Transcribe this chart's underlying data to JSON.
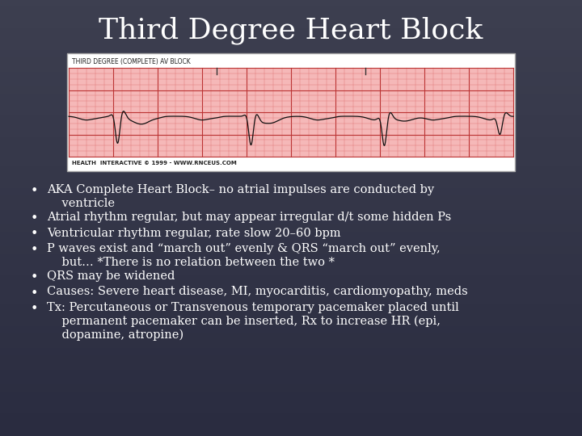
{
  "title": "Third Degree Heart Block",
  "title_fontsize": 26,
  "title_color": "#ffffff",
  "bg_color": "#3d3f50",
  "bullet_points": [
    "AKA Complete Heart Block– no atrial impulses are conducted by\n    ventricle",
    "Atrial rhythm regular, but may appear irregular d/t some hidden Ps",
    "Ventricular rhythm regular, rate slow 20–60 bpm",
    "P waves exist and “march out” evenly & QRS “march out” evenly,\n    but… *There is no relation between the two *",
    "QRS may be widened",
    "Causes: Severe heart disease, MI, myocarditis, cardiomyopathy, meds",
    "Tx: Percutaneous or Transvenous temporary pacemaker placed until\n    permanent pacemaker can be inserted, Rx to increase HR (epi,\n    dopamine, atropine)"
  ],
  "bullet_fontsize": 10.5,
  "bullet_color": "#ffffff",
  "ecg_image_label": "THIRD DEGREE (COMPLETE) AV BLOCK",
  "ecg_footer": "HEALTH  INTERACTIVE © 1999 - WWW.RNCEUS.COM",
  "ecg_bg": "#f5b8b8",
  "ecg_grid_minor": "#dd6666",
  "ecg_grid_major": "#bb3333",
  "ecg_line_color": "#111111",
  "ecg_border": "#cccccc",
  "ecg_header_bg": "#f0f0f0"
}
